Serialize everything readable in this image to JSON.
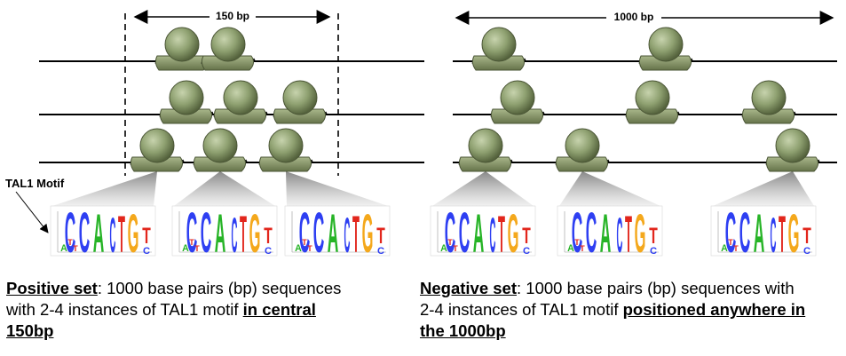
{
  "left_panel": {
    "span_label": "150 bp",
    "motif_label": "TAL1 Motif"
  },
  "right_panel": {
    "span_label": "1000 bp"
  },
  "motif_logo": {
    "letters": [
      "C",
      "C",
      "A",
      "C",
      "T",
      "G",
      "T"
    ],
    "small_letters": [
      "A",
      "T",
      "T",
      "C"
    ]
  },
  "captions": {
    "positive": {
      "lead": "Positive set",
      "text": ": 1000 base pairs (bp) sequences with 2-4 instances of TAL1 motif ",
      "emphasis": "in central 150bp"
    },
    "negative": {
      "lead": "Negative set",
      "text": ": 1000 base pairs (bp) sequences with 2-4 instances of TAL1 motif ",
      "emphasis": "positioned anywhere in the 1000bp"
    }
  },
  "colors": {
    "C": "#2e3ff2",
    "A": "#27b427",
    "G": "#f4a81c",
    "T": "#e2261c",
    "nucleosome": "#8ea070",
    "nucleosome_dark": "#55633d"
  }
}
